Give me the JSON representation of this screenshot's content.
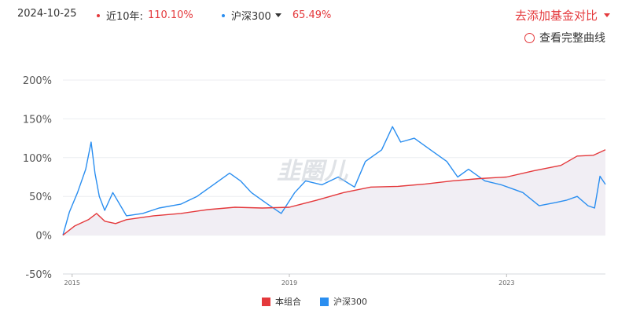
{
  "header": {
    "date": "2024-10-25",
    "series1_label": "近10年:",
    "series1_value": "110.10%",
    "series2_label": "沪深300",
    "series2_value": "65.49%",
    "add_compare": "去添加基金对比",
    "view_full_curve": "查看完整曲线"
  },
  "watermark": "韭圈儿",
  "colors": {
    "portfolio": "#e4393c",
    "index": "#2a8ef0",
    "accent": "#e4393c"
  },
  "chart_data": {
    "type": "line",
    "title": "",
    "ylim": [
      -50,
      200
    ],
    "yticks": [
      -50,
      0,
      50,
      100,
      150,
      200
    ],
    "ytick_labels": [
      "-50%",
      "0%",
      "50%",
      "100%",
      "150%",
      "200%"
    ],
    "xticks": [
      2015,
      2019,
      2023
    ],
    "xtick_labels": [
      "2015",
      "2019",
      "2023"
    ],
    "xlim": [
      2014.83,
      2024.82
    ],
    "grid": true,
    "legend": "bottom",
    "series": [
      {
        "name": "本组合",
        "color": "#e4393c",
        "x": [
          2014.83,
          2015.05,
          2015.3,
          2015.45,
          2015.6,
          2015.8,
          2016.0,
          2016.5,
          2017.0,
          2017.5,
          2018.0,
          2018.5,
          2019.0,
          2019.5,
          2020.0,
          2020.5,
          2021.0,
          2021.5,
          2022.0,
          2022.5,
          2023.0,
          2023.5,
          2024.0,
          2024.3,
          2024.6,
          2024.82
        ],
        "values": [
          0,
          12,
          20,
          28,
          18,
          15,
          20,
          25,
          28,
          33,
          36,
          35,
          36,
          45,
          55,
          62,
          63,
          66,
          70,
          73,
          75,
          83,
          90,
          102,
          103,
          110.1
        ]
      },
      {
        "name": "沪深300",
        "color": "#2a8ef0",
        "x": [
          2014.83,
          2014.95,
          2015.1,
          2015.25,
          2015.35,
          2015.42,
          2015.5,
          2015.6,
          2015.75,
          2016.0,
          2016.3,
          2016.6,
          2017.0,
          2017.3,
          2017.6,
          2017.9,
          2018.1,
          2018.3,
          2018.6,
          2018.85,
          2019.1,
          2019.3,
          2019.6,
          2019.9,
          2020.2,
          2020.4,
          2020.7,
          2020.9,
          2021.05,
          2021.3,
          2021.6,
          2021.9,
          2022.1,
          2022.3,
          2022.6,
          2022.9,
          2023.1,
          2023.3,
          2023.6,
          2023.9,
          2024.1,
          2024.3,
          2024.5,
          2024.62,
          2024.72,
          2024.82
        ],
        "values": [
          0,
          30,
          55,
          85,
          120,
          80,
          50,
          32,
          55,
          25,
          28,
          35,
          40,
          50,
          65,
          80,
          70,
          55,
          40,
          28,
          55,
          70,
          65,
          75,
          62,
          95,
          110,
          140,
          120,
          125,
          110,
          95,
          75,
          85,
          70,
          65,
          60,
          55,
          38,
          42,
          45,
          50,
          38,
          35,
          76,
          65.49
        ]
      }
    ]
  },
  "legend_bottom": [
    {
      "label": "本组合",
      "color": "#e4393c"
    },
    {
      "label": "沪深300",
      "color": "#2a8ef0"
    }
  ]
}
